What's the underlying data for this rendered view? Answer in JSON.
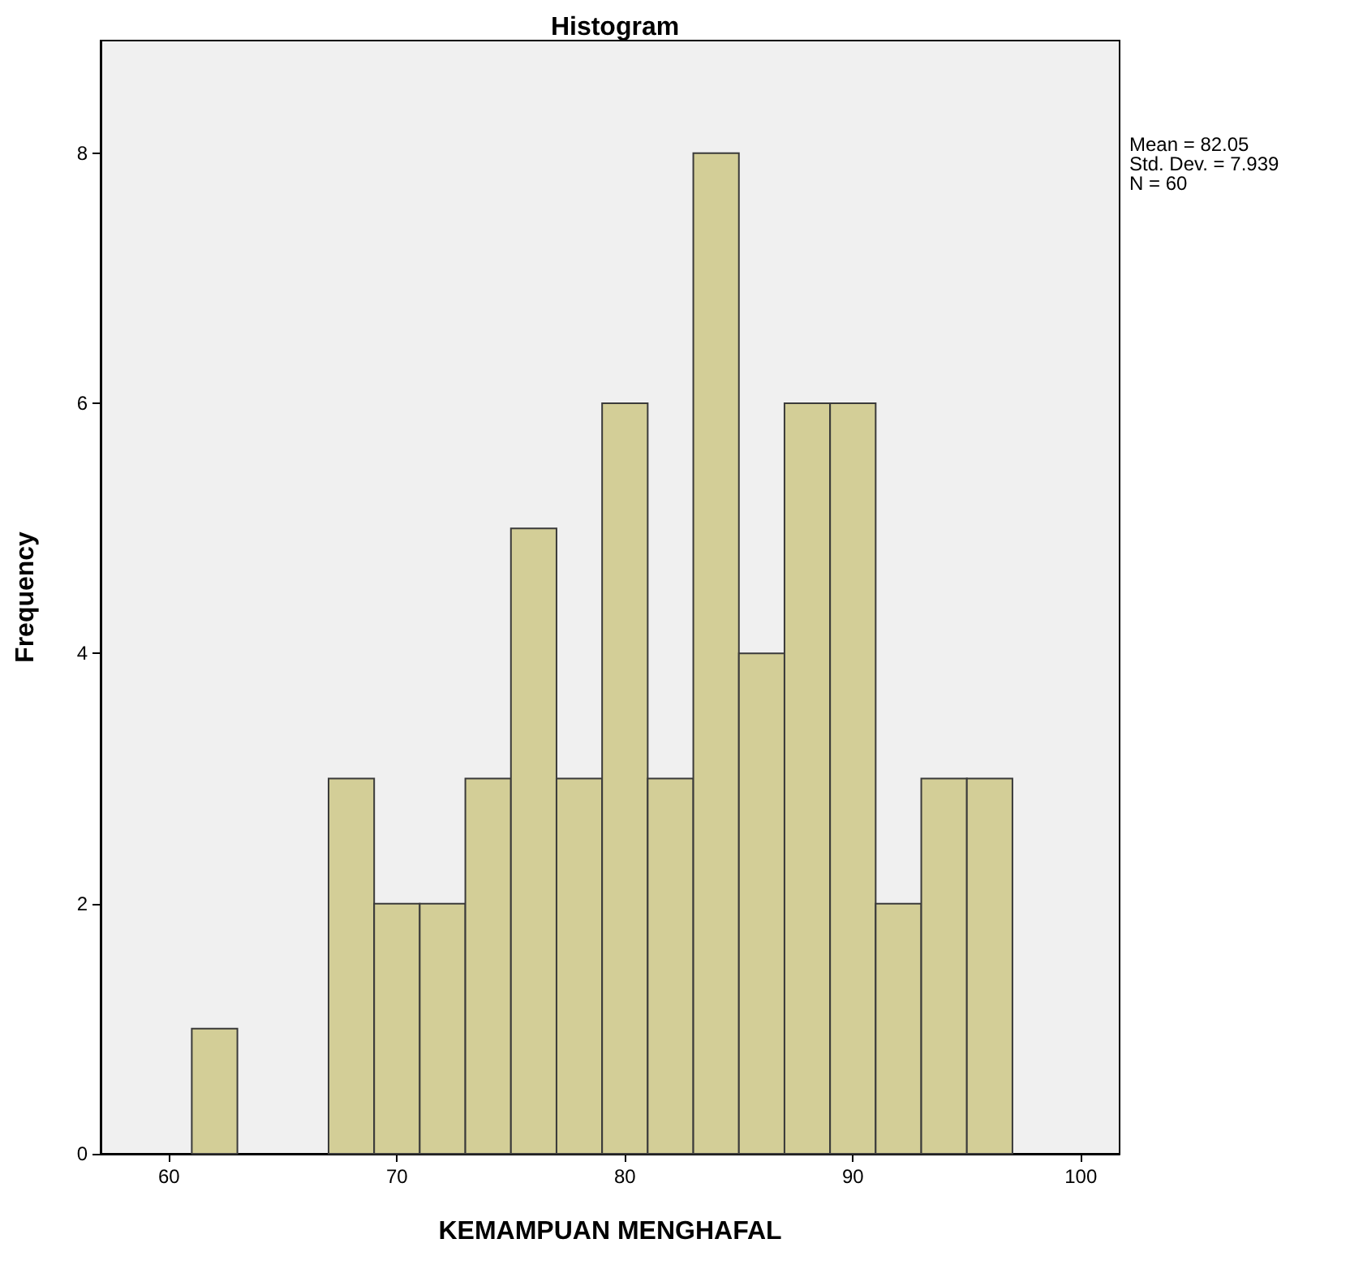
{
  "chart_data": {
    "type": "histogram",
    "title": "Histogram",
    "xlabel": "KEMAMPUAN MENGHAFAL",
    "ylabel": "Frequency",
    "bins": [
      61,
      63,
      65,
      67,
      69,
      71,
      73,
      75,
      77,
      79,
      81,
      83,
      85,
      87,
      89,
      91,
      93,
      95,
      97
    ],
    "values": [
      1,
      0,
      0,
      3,
      2,
      2,
      3,
      5,
      3,
      6,
      3,
      8,
      4,
      6,
      6,
      2,
      3,
      3
    ],
    "color": "#d3ce97",
    "xlim": [
      57,
      101.7
    ],
    "xticks": [
      60,
      70,
      80,
      90,
      100
    ],
    "ylim": [
      0,
      8.9
    ],
    "yticks": [
      0,
      2,
      4,
      6,
      8
    ],
    "annotations": [
      "Mean = 82.05",
      "Std. Dev. = 7.939",
      "N = 60"
    ],
    "grid": false
  }
}
